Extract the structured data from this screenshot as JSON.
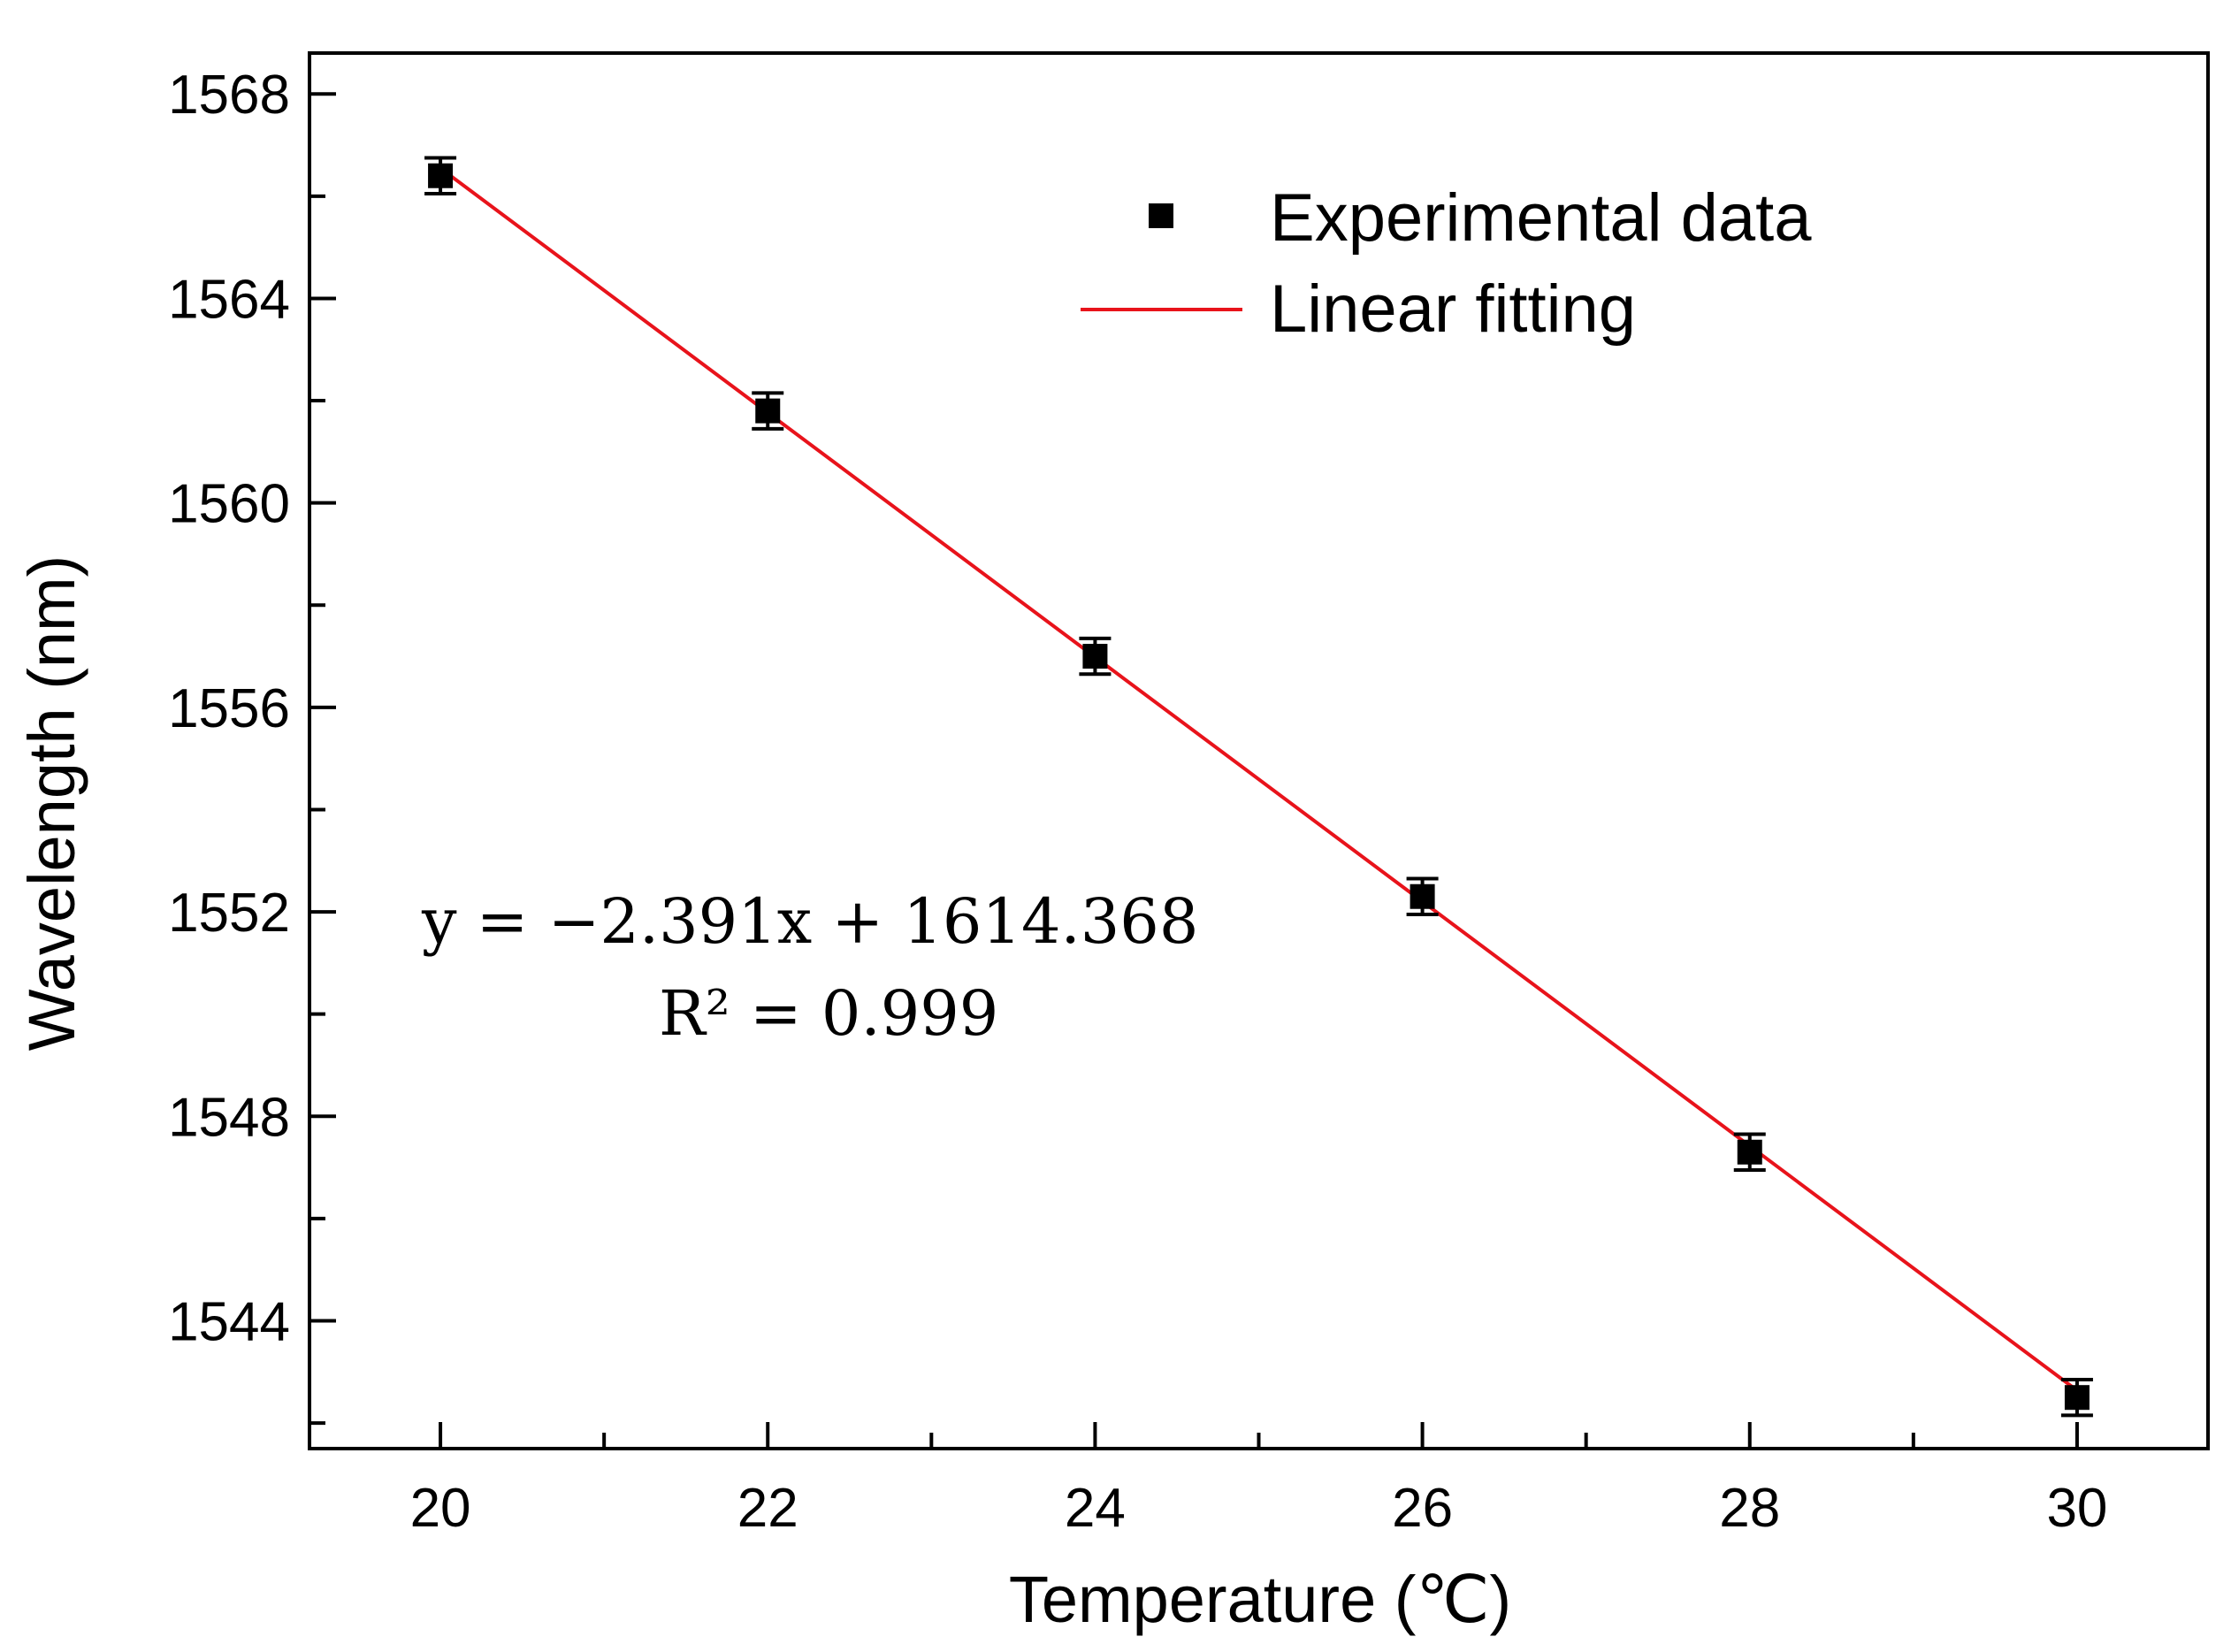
{
  "chart_data": {
    "type": "scatter",
    "xlabel": "Temperature (℃)",
    "ylabel": "Wavelength (nm)",
    "xlim": [
      19.2,
      30.8
    ],
    "ylim": [
      1541.5,
      1568.8
    ],
    "x_ticks": [
      20,
      22,
      24,
      26,
      28,
      30
    ],
    "x_tick_labels": [
      "20",
      "22",
      "24",
      "26",
      "28",
      "30"
    ],
    "y_ticks": [
      1544,
      1548,
      1552,
      1556,
      1560,
      1564,
      1568
    ],
    "y_tick_labels": [
      "1544",
      "1548",
      "1552",
      "1556",
      "1560",
      "1564",
      "1568"
    ],
    "series": [
      {
        "name": "Experimental data",
        "kind": "points",
        "color": "#000000",
        "x": [
          20,
          22,
          24,
          26,
          28,
          30
        ],
        "y": [
          1566.4,
          1561.8,
          1557.0,
          1552.3,
          1547.3,
          1542.5
        ],
        "error": [
          0.35,
          0.35,
          0.35,
          0.35,
          0.35,
          0.35
        ]
      },
      {
        "name": "Linear fitting",
        "kind": "line",
        "color": "#e8131b",
        "slope": -2.391,
        "intercept": 1614.368
      }
    ],
    "legend": {
      "position": "top-right",
      "entries": [
        "Experimental data",
        "Linear fitting"
      ]
    },
    "annotation": {
      "equation": "y = −2.391x + 1614.368",
      "r_squared": "R² = 0.999"
    }
  }
}
